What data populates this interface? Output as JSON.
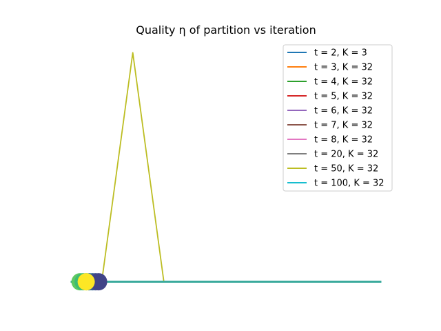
{
  "chart_data": {
    "type": "line",
    "title": "Quality η of partition vs iteration",
    "xlabel": "",
    "ylabel": "",
    "axes_visible": false,
    "grid": false,
    "legend_position": "top-right",
    "xlim": [
      -0.5,
      10.5
    ],
    "ylim": [
      -0.05,
      0.95
    ],
    "x": [
      0,
      1,
      2,
      3,
      4,
      5,
      6,
      7,
      8,
      9,
      10
    ],
    "series": [
      {
        "name": "t = 2, K = 3",
        "color": "#1f77b4",
        "values": [
          0,
          0,
          0,
          0,
          0,
          0,
          0,
          0,
          0,
          0,
          0
        ]
      },
      {
        "name": "t = 3, K = 32",
        "color": "#ff7f0e",
        "values": [
          0,
          0,
          0,
          0,
          0,
          0,
          0,
          0,
          0,
          0,
          0
        ]
      },
      {
        "name": "t = 4, K = 32",
        "color": "#2ca02c",
        "values": [
          0,
          0,
          0,
          0,
          0,
          0,
          0,
          0,
          0,
          0,
          0
        ]
      },
      {
        "name": "t = 5, K = 32",
        "color": "#d62728",
        "values": [
          0,
          0,
          0,
          0,
          0,
          0,
          0,
          0,
          0,
          0,
          0
        ]
      },
      {
        "name": "t = 6, K = 32",
        "color": "#9467bd",
        "values": [
          0,
          0,
          0,
          0,
          0,
          0,
          0,
          0,
          0,
          0,
          0
        ]
      },
      {
        "name": "t = 7, K = 32",
        "color": "#8c564b",
        "values": [
          0,
          0,
          0,
          0,
          0,
          0,
          0,
          0,
          0,
          0,
          0
        ]
      },
      {
        "name": "t = 8, K = 32",
        "color": "#e377c2",
        "values": [
          0,
          0,
          0,
          0,
          0,
          0,
          0,
          0,
          0,
          0,
          0
        ]
      },
      {
        "name": "t = 20, K = 32",
        "color": "#7f7f7f",
        "values": [
          0,
          0,
          0,
          0,
          0,
          0,
          0,
          0,
          0,
          0,
          0
        ]
      },
      {
        "name": "t = 50, K = 32",
        "color": "#bcbd22",
        "values": [
          0,
          0,
          0.9,
          0,
          0,
          0,
          0,
          0,
          0,
          0,
          0
        ]
      },
      {
        "name": "t = 100, K = 32",
        "color": "#17becf",
        "values": [
          0,
          0,
          0,
          0,
          0,
          0,
          0,
          0,
          0,
          0,
          0
        ]
      }
    ],
    "baseline_line": {
      "color": "#3aaa9c",
      "x": [
        0,
        10
      ],
      "y": [
        0,
        0
      ]
    },
    "scatter": {
      "x": [
        0.3,
        0.4,
        0.5,
        0.6,
        0.7,
        0.8,
        0.9,
        0.5
      ],
      "y": [
        0,
        0,
        0,
        0,
        0,
        0,
        0,
        0
      ],
      "colors": [
        "#5ec962",
        "#3fbc73",
        "#21918c",
        "#2a788e",
        "#31688e",
        "#3b528b",
        "#414487",
        "#fde725"
      ]
    }
  }
}
